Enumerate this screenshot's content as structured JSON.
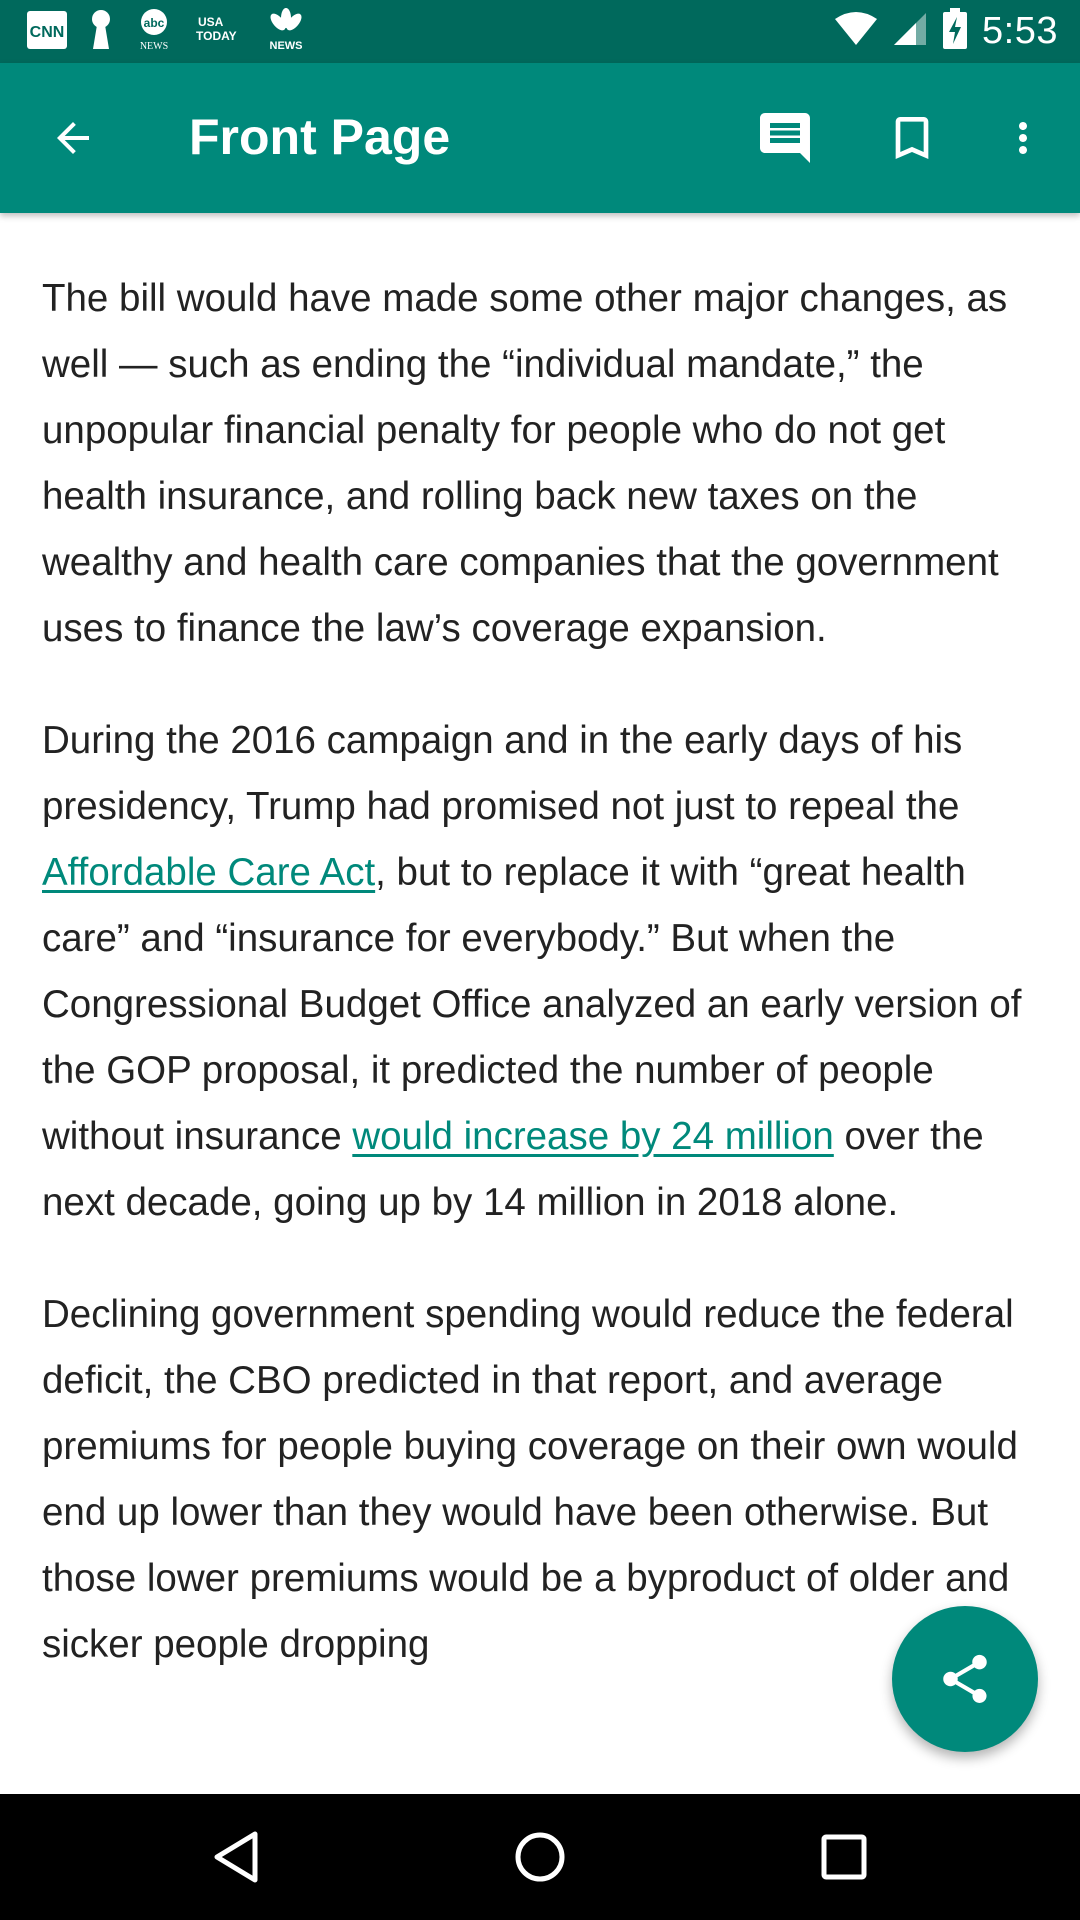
{
  "status_bar": {
    "time": "5:53",
    "notification_icons": [
      {
        "name": "cnn-icon",
        "label": "CNN"
      },
      {
        "name": "keyhole-icon",
        "label": ""
      },
      {
        "name": "abc-news-icon",
        "label": "abc",
        "sub": "NEWS"
      },
      {
        "name": "usa-today-icon",
        "label": "USA",
        "sub": "TODAY"
      },
      {
        "name": "nbc-news-icon",
        "label": "NEWS"
      }
    ],
    "system_icons": [
      "wifi-icon",
      "signal-icon",
      "battery-charging-icon"
    ]
  },
  "app_bar": {
    "title": "Front Page",
    "actions": [
      "back-icon",
      "comments-icon",
      "bookmark-icon",
      "more-vert-icon"
    ]
  },
  "article": {
    "p1": "The bill would have made some other major changes, as well — such as ending the “individual mandate,” the unpopular financial penalty for people who do not get health insurance, and rolling back new taxes on the wealthy and health care companies that the government uses to finance the law’s coverage expansion.",
    "p2": {
      "t1": "During the 2016 campaign and in the early days of his presidency, Trump had promised not just to repeal the ",
      "link1": "Affordable Care Act",
      "t2": ", but to replace it with “great health care” and “insurance for everybody.” But when the Congressional Budget Office analyzed an early version of the GOP proposal, it predicted the number of people without insurance ",
      "link2": "would increase by 24 million",
      "t3": " over the next decade, going up by 14 million in 2018 alone."
    },
    "p3": "Declining government spending would reduce the federal deficit, the CBO predicted in that report, and average premiums for people buying coverage on their own would end up lower than they would have been otherwise. But those lower premiums would be a byproduct of older and sicker people dropping"
  },
  "fab": {
    "icon": "share-icon"
  },
  "nav_bar": {
    "buttons": [
      "nav-back-icon",
      "nav-home-icon",
      "nav-recents-icon"
    ]
  },
  "colors": {
    "status_bar": "#00695c",
    "app_bar": "#00897b",
    "link": "#00897b",
    "text": "#222222"
  }
}
